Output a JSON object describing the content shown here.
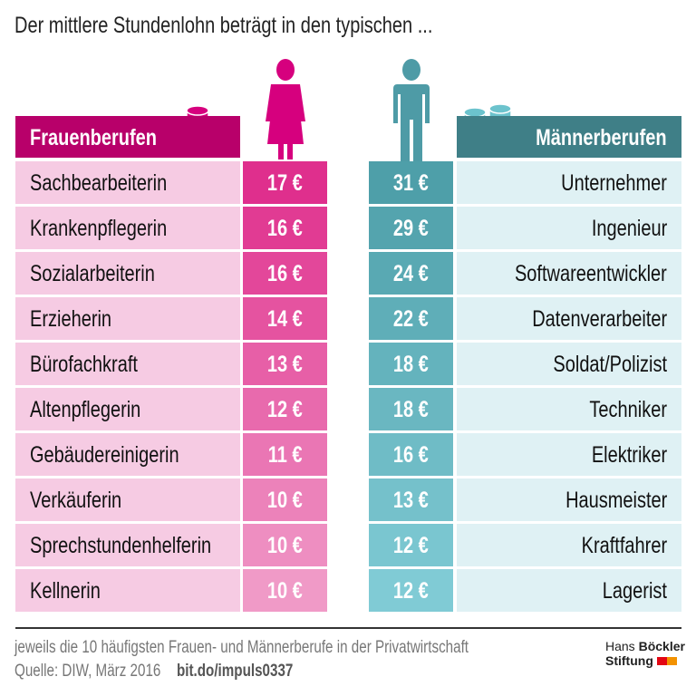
{
  "title": "Der mittlere Stundenlohn beträgt in den typischen ...",
  "headers": {
    "women": "Frauenberufen",
    "men": "Männerberufen"
  },
  "colors": {
    "women_header": "#b8006a",
    "men_header": "#3f7f87",
    "women_figure": "#d6007e",
    "men_figure": "#4e9ba6",
    "women_value_dark": "#df2f8d",
    "women_value_light": "#f09ac7",
    "men_value_dark": "#4e9fa9",
    "men_value_light": "#80cbd5"
  },
  "chart_data": {
    "type": "table",
    "columns": [
      "Frauenberufen",
      "Stundenlohn",
      "Stundenlohn",
      "Männerberufen"
    ],
    "women": [
      {
        "job": "Sachbearbeiterin",
        "wage": "17 €"
      },
      {
        "job": "Krankenpflegerin",
        "wage": "16 €"
      },
      {
        "job": "Sozialarbeiterin",
        "wage": "16 €"
      },
      {
        "job": "Erzieherin",
        "wage": "14 €"
      },
      {
        "job": "Bürofachkraft",
        "wage": "13 €"
      },
      {
        "job": "Altenpflegerin",
        "wage": "12 €"
      },
      {
        "job": "Gebäudereinigerin",
        "wage": "11 €"
      },
      {
        "job": "Verkäuferin",
        "wage": "10 €"
      },
      {
        "job": "Sprechstundenhelferin",
        "wage": "10 €"
      },
      {
        "job": "Kellnerin",
        "wage": "10 €"
      }
    ],
    "men": [
      {
        "job": "Unternehmer",
        "wage": "31 €"
      },
      {
        "job": "Ingenieur",
        "wage": "29 €"
      },
      {
        "job": "Softwareentwickler",
        "wage": "24 €"
      },
      {
        "job": "Datenverarbeiter",
        "wage": "22 €"
      },
      {
        "job": "Soldat/Polizist",
        "wage": "18 €"
      },
      {
        "job": "Techniker",
        "wage": "18 €"
      },
      {
        "job": "Elektriker",
        "wage": "16 €"
      },
      {
        "job": "Hausmeister",
        "wage": "13 €"
      },
      {
        "job": "Kraftfahrer",
        "wage": "12 €"
      },
      {
        "job": "Lagerist",
        "wage": "12 €"
      }
    ]
  },
  "footer": {
    "note": "jeweils die 10 häufigsten Frauen- und Männerberufe in der Privatwirtschaft",
    "source": "Quelle: DIW, März 2016",
    "link": "bit.do/impuls0337"
  },
  "logo": {
    "line1_a": "Hans",
    "line1_b": "Böckler",
    "line2": "Stiftung"
  }
}
